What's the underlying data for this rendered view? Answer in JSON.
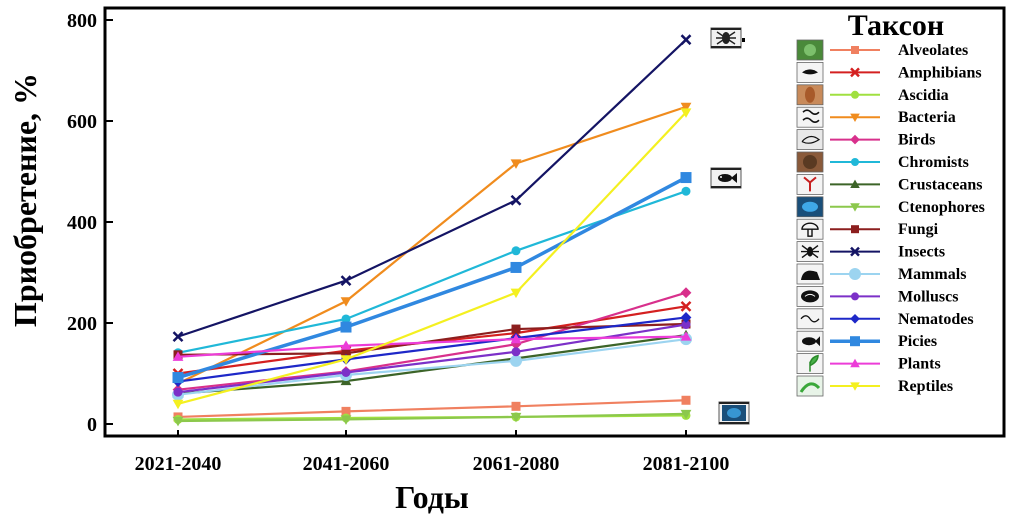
{
  "chart_data": {
    "type": "line",
    "xlabel": "Годы",
    "ylabel": "Приобретение, %",
    "categories": [
      "2021-2040",
      "2041-2060",
      "2061-2080",
      "2081-2100"
    ],
    "ylim": [
      0,
      800
    ],
    "yticks": [
      0,
      200,
      400,
      600,
      800
    ],
    "grid": false,
    "legend": {
      "title": "Таксон",
      "placement": "right"
    },
    "series": [
      {
        "name": "Alveolates",
        "color": "#f08060",
        "marker": "square",
        "values": [
          14,
          25,
          35,
          47
        ]
      },
      {
        "name": "Amphibians",
        "color": "#d42020",
        "marker": "x",
        "values": [
          100,
          145,
          180,
          233
        ]
      },
      {
        "name": "Ascidia",
        "color": "#a0e040",
        "marker": "circle",
        "values": [
          9,
          12,
          14,
          17
        ]
      },
      {
        "name": "Bacteria",
        "color": "#f08c1e",
        "marker": "triangle-down",
        "values": [
          80,
          243,
          516,
          628
        ]
      },
      {
        "name": "Birds",
        "color": "#d8308c",
        "marker": "diamond",
        "values": [
          68,
          104,
          158,
          260
        ]
      },
      {
        "name": "Chromists",
        "color": "#20b8d8",
        "marker": "circle",
        "values": [
          141,
          208,
          343,
          461
        ]
      },
      {
        "name": "Crustaceans",
        "color": "#3c6428",
        "marker": "triangle-up",
        "values": [
          60,
          85,
          130,
          176
        ]
      },
      {
        "name": "Ctenophores",
        "color": "#8cc84c",
        "marker": "triangle-down",
        "values": [
          6,
          9,
          14,
          20
        ]
      },
      {
        "name": "Fungi",
        "color": "#8c1e1e",
        "marker": "square",
        "values": [
          137,
          140,
          188,
          198
        ]
      },
      {
        "name": "Insects",
        "color": "#141464",
        "marker": "x",
        "values": [
          173,
          284,
          443,
          761
        ]
      },
      {
        "name": "Mammals",
        "color": "#9cd4f0",
        "marker": "circle",
        "values": [
          58,
          97,
          125,
          168
        ]
      },
      {
        "name": "Molluscs",
        "color": "#7c30c8",
        "marker": "circle",
        "values": [
          63,
          102,
          143,
          197
        ]
      },
      {
        "name": "Nematodes",
        "color": "#1e28c8",
        "marker": "diamond",
        "values": [
          84,
          128,
          170,
          211
        ]
      },
      {
        "name": "Picies",
        "color": "#3088e0",
        "marker": "square",
        "values": [
          92,
          192,
          310,
          488
        ]
      },
      {
        "name": "Plants",
        "color": "#ec3cd8",
        "marker": "triangle-up",
        "values": [
          133,
          155,
          168,
          173
        ]
      },
      {
        "name": "Reptiles",
        "color": "#f4f020",
        "marker": "triangle-down",
        "values": [
          40,
          128,
          260,
          617
        ]
      }
    ]
  }
}
